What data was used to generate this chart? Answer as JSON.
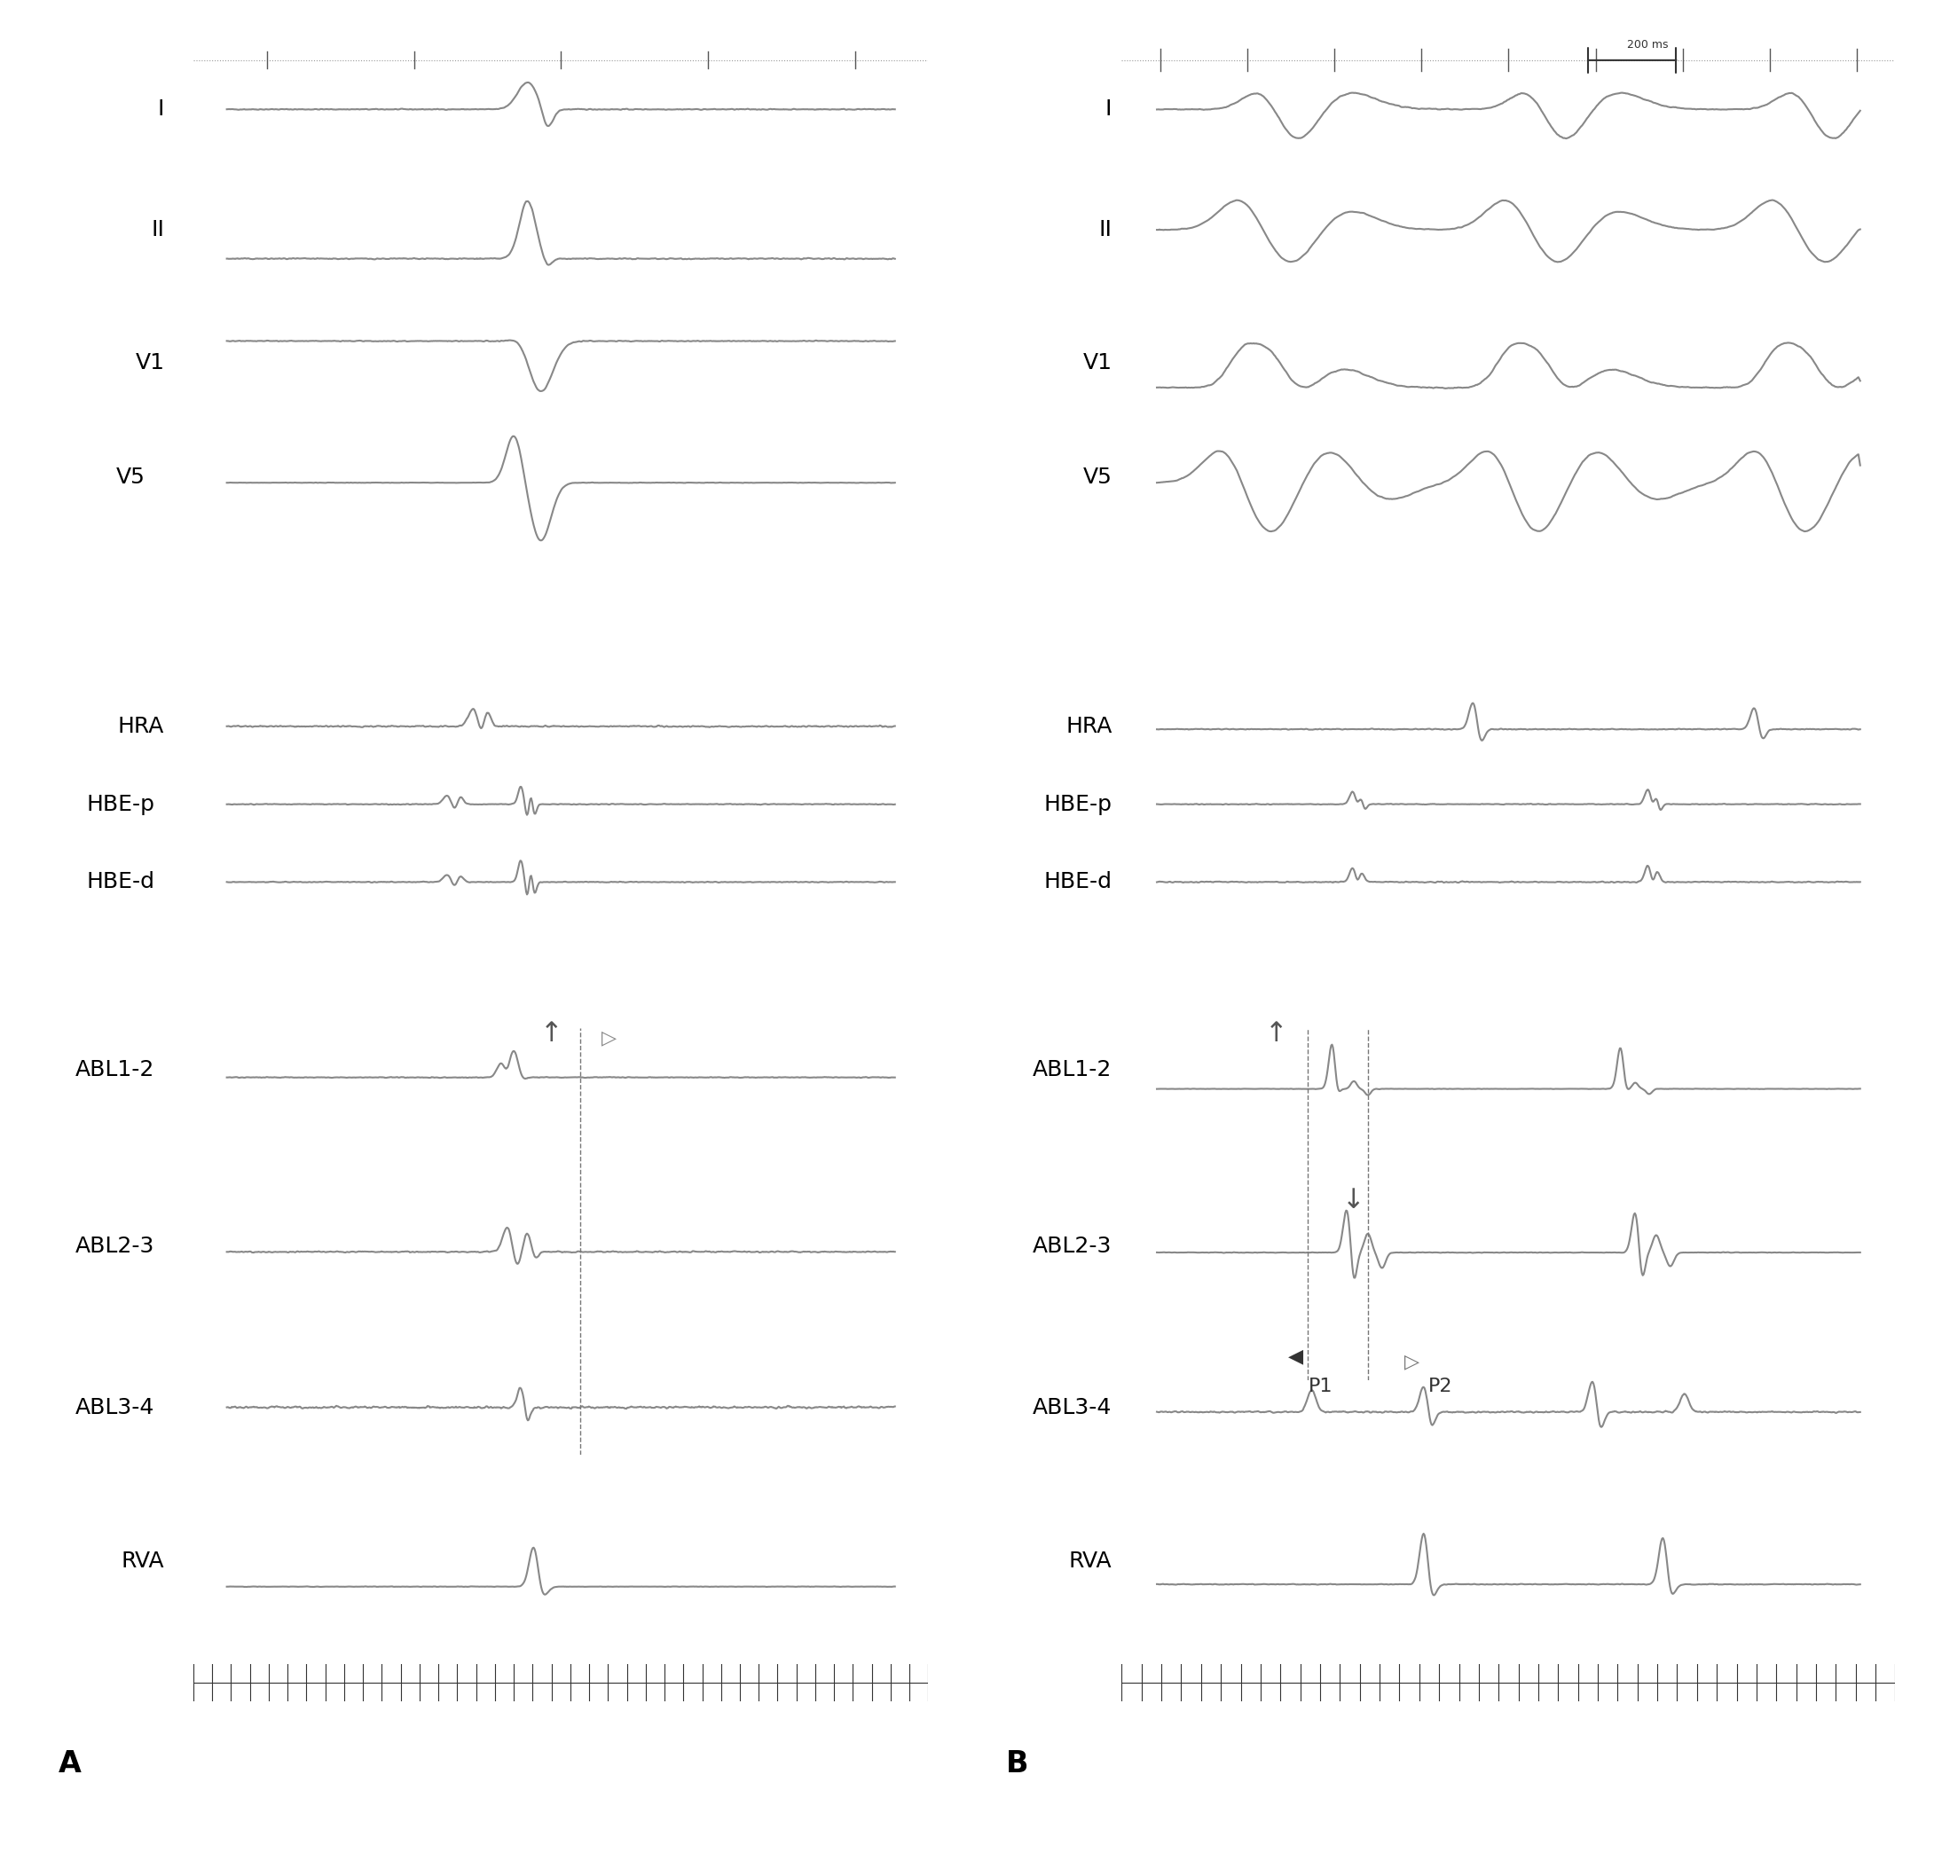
{
  "bg_color": "#ffffff",
  "line_color": "#888888",
  "line_width": 1.5,
  "panel_A_label": "A",
  "panel_B_label": "B",
  "traces_A": [
    "I",
    "II",
    "V1",
    "V5",
    "HRA",
    "HBE-p",
    "HBE-d",
    "ABL1-2",
    "ABL2-3",
    "ABL3-4",
    "RVA"
  ],
  "traces_B": [
    "I",
    "II",
    "V1",
    "V5",
    "HRA",
    "HBE-p",
    "HBE-d",
    "ABL1-2",
    "ABL2-3",
    "ABL3-4",
    "RVA"
  ],
  "label_color": "#000000",
  "arrow_color": "#666666",
  "timebar_color": "#333333"
}
